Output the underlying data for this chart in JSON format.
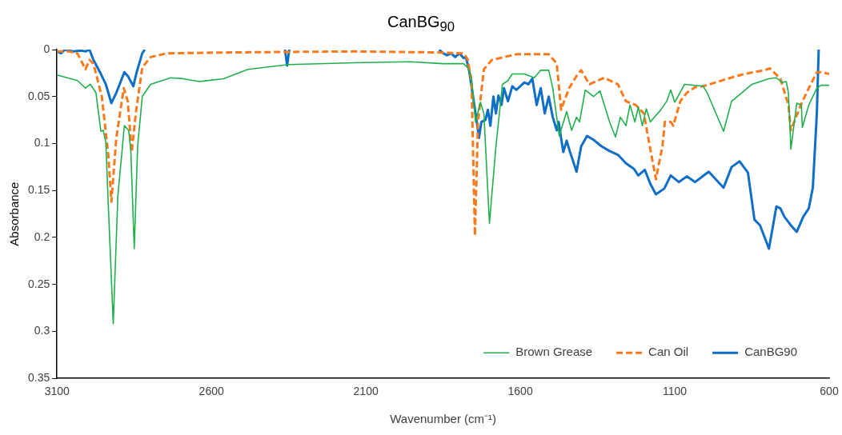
{
  "chart_data": {
    "type": "line",
    "title": "CanBG$_{90}$",
    "xlabel": "Wavenumber (cm⁻¹)",
    "ylabel": "Absorbance",
    "xlim": [
      3100,
      600
    ],
    "ylim": [
      0.35,
      0
    ],
    "xticks": [
      3100,
      2600,
      2100,
      1600,
      1100,
      600
    ],
    "yticks": [
      0,
      0.05,
      0.1,
      0.15,
      0.2,
      0.25,
      0.3,
      0.35
    ],
    "grid": false,
    "legend": "bottom right",
    "marker": "none",
    "series": [
      {
        "name": "Brown Grease",
        "color": "#1fb04c",
        "line_style": "solid",
        "x": [
          3100,
          3034,
          3008,
          2992,
          2974,
          2958,
          2950,
          2942,
          2934,
          2918,
          2903,
          2882,
          2868,
          2861,
          2850,
          2839,
          2824,
          2797,
          2732,
          2692,
          2639,
          2561,
          2482,
          2350,
          2139,
          1955,
          1850,
          1784,
          1771,
          1758,
          1745,
          1729,
          1718,
          1700,
          1679,
          1658,
          1640,
          1626,
          1587,
          1555,
          1534,
          1508,
          1495,
          1474,
          1450,
          1434,
          1418,
          1408,
          1390,
          1363,
          1342,
          1311,
          1292,
          1276,
          1258,
          1245,
          1229,
          1218,
          1205,
          1192,
          1179,
          1166,
          1147,
          1126,
          1113,
          1100,
          1068,
          1008,
          995,
          942,
          916,
          890,
          850,
          797,
          771,
          753,
          739,
          732,
          724,
          705,
          690,
          687,
          666,
          640,
          626,
          600
        ],
        "values": [
          0.027,
          0.033,
          0.041,
          0.037,
          0.046,
          0.087,
          0.086,
          0.099,
          0.165,
          0.292,
          0.156,
          0.081,
          0.086,
          0.108,
          0.212,
          0.103,
          0.05,
          0.037,
          0.03,
          0.031,
          0.034,
          0.031,
          0.021,
          0.016,
          0.014,
          0.013,
          0.015,
          0.015,
          0.019,
          0.03,
          0.077,
          0.056,
          0.068,
          0.185,
          0.103,
          0.037,
          0.033,
          0.026,
          0.026,
          0.03,
          0.022,
          0.022,
          0.041,
          0.092,
          0.066,
          0.086,
          0.072,
          0.077,
          0.043,
          0.05,
          0.044,
          0.077,
          0.093,
          0.072,
          0.081,
          0.059,
          0.077,
          0.061,
          0.081,
          0.063,
          0.077,
          0.072,
          0.065,
          0.055,
          0.043,
          0.056,
          0.037,
          0.039,
          0.046,
          0.087,
          0.055,
          0.048,
          0.037,
          0.031,
          0.03,
          0.035,
          0.034,
          0.046,
          0.106,
          0.057,
          0.059,
          0.083,
          0.059,
          0.041,
          0.038,
          0.038
        ]
      },
      {
        "name": "Can Oil",
        "color": "#f97a1c",
        "line_style": "dashed",
        "x": [
          3100,
          3061,
          3034,
          3008,
          2995,
          2982,
          2955,
          2934,
          2924,
          2908,
          2884,
          2871,
          2858,
          2845,
          2824,
          2797,
          2745,
          2534,
          2139,
          1876,
          1784,
          1771,
          1758,
          1747,
          1737,
          1718,
          1692,
          1613,
          1508,
          1482,
          1468,
          1442,
          1416,
          1403,
          1376,
          1329,
          1284,
          1258,
          1226,
          1200,
          1187,
          1161,
          1140,
          1132,
          1113,
          1105,
          1082,
          1061,
          1034,
          1008,
          968,
          929,
          876,
          810,
          792,
          758,
          732,
          724,
          692,
          666,
          640,
          626,
          600
        ],
        "values": [
          0.002,
          0.002,
          0.004,
          0.021,
          0.011,
          0.015,
          0.05,
          0.112,
          0.162,
          0.094,
          0.041,
          0.055,
          0.109,
          0.068,
          0.019,
          0.008,
          0.004,
          0.003,
          0.002,
          0.003,
          0.004,
          0.01,
          0.033,
          0.198,
          0.077,
          0.021,
          0.011,
          0.005,
          0.005,
          0.015,
          0.064,
          0.041,
          0.027,
          0.022,
          0.037,
          0.03,
          0.037,
          0.055,
          0.059,
          0.068,
          0.092,
          0.138,
          0.103,
          0.077,
          0.077,
          0.081,
          0.055,
          0.046,
          0.04,
          0.039,
          0.035,
          0.031,
          0.026,
          0.022,
          0.02,
          0.031,
          0.059,
          0.086,
          0.059,
          0.041,
          0.024,
          0.024,
          0.026
        ]
      },
      {
        "name": "CanBG90",
        "color": "#0f6fc6",
        "line_style": "solid",
        "x": [
          3100,
          3087,
          3074,
          3047,
          3021,
          3008,
          2995,
          2982,
          2961,
          2942,
          2924,
          2908,
          2882,
          2871,
          2853,
          2842,
          2824,
          2816,
          2800,
          2362,
          2355,
          2348,
          1880,
          1863,
          1850,
          1837,
          1824,
          1811,
          1797,
          1784,
          1776,
          1766,
          1753,
          1745,
          1737,
          1734,
          1726,
          1713,
          1705,
          1697,
          1687,
          1679,
          1671,
          1661,
          1653,
          1640,
          1626,
          1613,
          1587,
          1574,
          1561,
          1547,
          1534,
          1521,
          1508,
          1495,
          1482,
          1476,
          1461,
          1450,
          1440,
          1418,
          1403,
          1384,
          1363,
          1337,
          1311,
          1284,
          1258,
          1232,
          1218,
          1197,
          1179,
          1161,
          1134,
          1113,
          1087,
          1061,
          1034,
          990,
          942,
          916,
          890,
          863,
          842,
          824,
          795,
          771,
          758,
          745,
          724,
          705,
          684,
          666,
          653,
          640,
          634
        ],
        "values": [
          0.002,
          0.004,
          0.0,
          0.002,
          0.001,
          0.002,
          0.0,
          0.011,
          0.024,
          0.037,
          0.057,
          0.046,
          0.024,
          0.028,
          0.039,
          0.024,
          0.004,
          0.0,
          null,
          0.0,
          0.017,
          0.0,
          null,
          0.0,
          0.004,
          0.006,
          0.004,
          0.008,
          0.004,
          0.009,
          0.008,
          0.022,
          0.05,
          0.068,
          0.086,
          0.094,
          0.077,
          0.075,
          0.064,
          0.081,
          0.05,
          0.068,
          0.049,
          0.059,
          0.041,
          0.055,
          0.039,
          0.043,
          0.035,
          0.037,
          0.031,
          0.059,
          0.041,
          0.068,
          0.05,
          0.072,
          0.086,
          0.077,
          0.109,
          0.097,
          0.108,
          0.13,
          0.103,
          0.092,
          0.096,
          0.103,
          0.108,
          0.112,
          0.121,
          0.127,
          0.134,
          0.128,
          0.143,
          0.154,
          0.148,
          0.134,
          0.141,
          0.135,
          0.141,
          0.13,
          0.147,
          0.125,
          0.119,
          0.131,
          0.181,
          0.187,
          0.212,
          0.167,
          0.169,
          0.178,
          0.187,
          0.194,
          0.178,
          0.169,
          0.147,
          0.068,
          0.0
        ]
      }
    ]
  }
}
